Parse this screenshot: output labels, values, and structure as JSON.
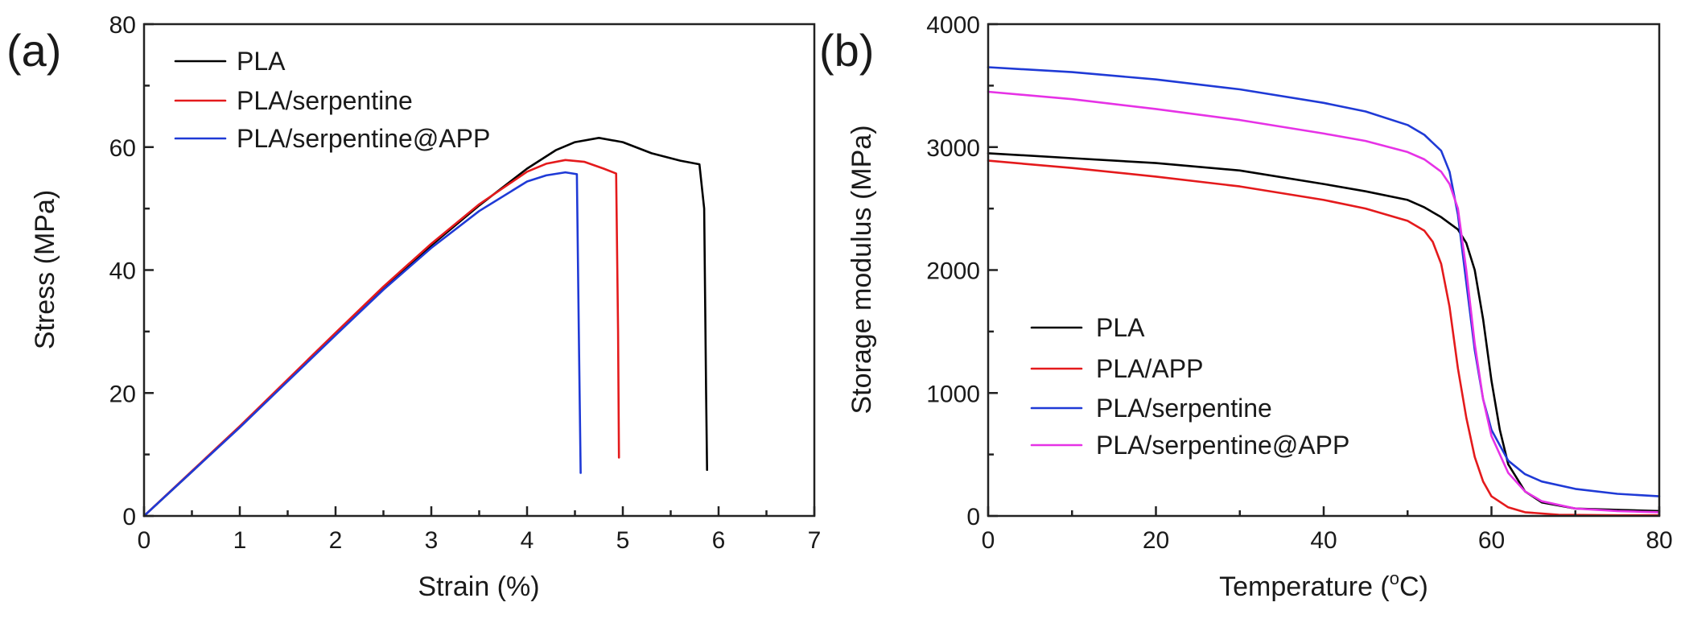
{
  "chart_data": [
    {
      "panel_label": "(a)",
      "type": "line",
      "title": "",
      "xlabel": "Strain (%)",
      "ylabel": "Stress (MPa)",
      "xlim": [
        0,
        7
      ],
      "ylim": [
        0,
        80
      ],
      "xticks": [
        0,
        1,
        2,
        3,
        4,
        5,
        6,
        7
      ],
      "xtick_labels": [
        "0",
        "1",
        "2",
        "3",
        "4",
        "5",
        "6",
        "7"
      ],
      "yticks": [
        0,
        20,
        40,
        60,
        80
      ],
      "ytick_labels": [
        "0",
        "20",
        "40",
        "60",
        "80"
      ],
      "grid": false,
      "legend_position": "top-left",
      "series": [
        {
          "name": "PLA",
          "color": "#000000",
          "x": [
            0,
            0.5,
            1.0,
            1.5,
            2.0,
            2.5,
            3.0,
            3.5,
            4.0,
            4.3,
            4.5,
            4.75,
            5.0,
            5.3,
            5.6,
            5.8,
            5.85,
            5.87,
            5.88
          ],
          "y": [
            0,
            7.2,
            14.5,
            22.0,
            29.5,
            37.0,
            44.0,
            50.5,
            56.5,
            59.5,
            60.8,
            61.5,
            60.8,
            59.0,
            57.8,
            57.2,
            50.0,
            20.0,
            7.5
          ]
        },
        {
          "name": "PLA/serpentine",
          "color": "#e41a1c",
          "x": [
            0,
            0.5,
            1.0,
            1.5,
            2.0,
            2.5,
            3.0,
            3.5,
            4.0,
            4.2,
            4.4,
            4.6,
            4.8,
            4.93,
            4.95,
            4.96
          ],
          "y": [
            0,
            7.3,
            14.6,
            22.2,
            29.8,
            37.3,
            44.3,
            50.7,
            56.0,
            57.3,
            57.9,
            57.6,
            56.5,
            55.7,
            30.0,
            9.5
          ]
        },
        {
          "name": "PLA/serpentine@APP",
          "color": "#1f3ad6",
          "x": [
            0,
            0.5,
            1.0,
            1.5,
            2.0,
            2.5,
            3.0,
            3.5,
            4.0,
            4.2,
            4.4,
            4.52,
            4.54,
            4.56
          ],
          "y": [
            0,
            7.2,
            14.4,
            21.9,
            29.4,
            36.8,
            43.6,
            49.6,
            54.4,
            55.4,
            55.9,
            55.6,
            30.0,
            7.0
          ]
        }
      ]
    },
    {
      "panel_label": "(b)",
      "type": "line",
      "title": "",
      "xlabel": "Temperature (°C)",
      "xlabel_main": "Temperature (",
      "xlabel_sup": "o",
      "xlabel_tail": "C)",
      "ylabel": "Storage modulus (MPa)",
      "xlim": [
        0,
        80
      ],
      "ylim": [
        0,
        4000
      ],
      "xticks": [
        0,
        20,
        40,
        60,
        80
      ],
      "xtick_labels": [
        "0",
        "20",
        "40",
        "60",
        "80"
      ],
      "yticks": [
        0,
        1000,
        2000,
        3000,
        4000
      ],
      "ytick_labels": [
        "0",
        "1000",
        "2000",
        "3000",
        "4000"
      ],
      "grid": false,
      "legend_position": "bottom-left",
      "series": [
        {
          "name": "PLA",
          "color": "#000000",
          "x": [
            0,
            10,
            20,
            30,
            40,
            45,
            50,
            52,
            54,
            56,
            57,
            58,
            59,
            60,
            61,
            62,
            64,
            66,
            70,
            75,
            80
          ],
          "y": [
            2950,
            2910,
            2870,
            2810,
            2700,
            2640,
            2570,
            2510,
            2430,
            2330,
            2220,
            2000,
            1600,
            1100,
            700,
            420,
            200,
            110,
            60,
            50,
            40
          ]
        },
        {
          "name": "PLA/APP",
          "color": "#e41a1c",
          "x": [
            0,
            10,
            20,
            30,
            40,
            45,
            50,
            52,
            53,
            54,
            55,
            56,
            57,
            58,
            59,
            60,
            62,
            64,
            68,
            75,
            80
          ],
          "y": [
            2890,
            2830,
            2760,
            2680,
            2570,
            2500,
            2400,
            2320,
            2230,
            2050,
            1700,
            1200,
            800,
            480,
            280,
            160,
            70,
            30,
            10,
            5,
            5
          ]
        },
        {
          "name": "PLA/serpentine",
          "color": "#1f3ad6",
          "x": [
            0,
            10,
            20,
            30,
            40,
            45,
            50,
            52,
            54,
            55,
            56,
            57,
            58,
            59,
            60,
            62,
            64,
            66,
            70,
            75,
            80
          ],
          "y": [
            3650,
            3610,
            3550,
            3470,
            3360,
            3290,
            3180,
            3100,
            2970,
            2800,
            2450,
            1900,
            1350,
            950,
            700,
            450,
            340,
            280,
            220,
            180,
            160
          ]
        },
        {
          "name": "PLA/serpentine@APP",
          "color": "#e632e6",
          "x": [
            0,
            10,
            20,
            30,
            40,
            45,
            50,
            52,
            54,
            55,
            56,
            57,
            58,
            59,
            60,
            62,
            64,
            66,
            70,
            75,
            80
          ],
          "y": [
            3450,
            3390,
            3310,
            3220,
            3110,
            3050,
            2960,
            2900,
            2800,
            2700,
            2500,
            2000,
            1400,
            950,
            650,
            350,
            200,
            120,
            60,
            40,
            30
          ]
        }
      ]
    }
  ]
}
